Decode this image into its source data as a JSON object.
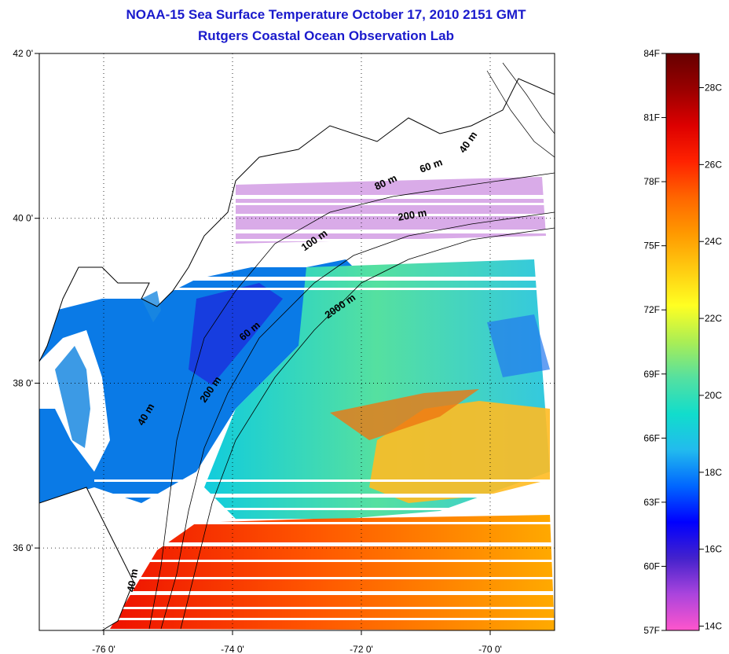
{
  "title_line1": "NOAA-15 Sea Surface Temperature October 17, 2010 2151 GMT",
  "title_line2": "Rutgers Coastal Ocean Observation Lab",
  "map": {
    "lon_range": [
      -77,
      -69
    ],
    "lat_range": [
      35,
      42
    ],
    "lon_ticks": [
      {
        "value": -76,
        "label": "-76 0'"
      },
      {
        "value": -74,
        "label": "-74 0'"
      },
      {
        "value": -72,
        "label": "-72 0'"
      },
      {
        "value": -70,
        "label": "-70 0'"
      }
    ],
    "lat_ticks": [
      {
        "value": 42,
        "label": "42 0'"
      },
      {
        "value": 40,
        "label": "40 0'"
      },
      {
        "value": 38,
        "label": "38 0'"
      },
      {
        "value": 36,
        "label": "36 0'"
      }
    ],
    "isobath_labels": [
      {
        "text": "40 m",
        "lon": -70.3,
        "lat": 40.9,
        "rot": -55
      },
      {
        "text": "60 m",
        "lon": -70.9,
        "lat": 40.6,
        "rot": -20
      },
      {
        "text": "80 m",
        "lon": -71.6,
        "lat": 40.4,
        "rot": -25
      },
      {
        "text": "200 m",
        "lon": -71.2,
        "lat": 40.0,
        "rot": -10
      },
      {
        "text": "100 m",
        "lon": -72.7,
        "lat": 39.7,
        "rot": -35
      },
      {
        "text": "2000 m",
        "lon": -72.3,
        "lat": 38.9,
        "rot": -35
      },
      {
        "text": "60 m",
        "lon": -73.7,
        "lat": 38.6,
        "rot": -40
      },
      {
        "text": "200 m",
        "lon": -74.3,
        "lat": 37.9,
        "rot": -55
      },
      {
        "text": "40 m",
        "lon": -75.3,
        "lat": 37.6,
        "rot": -60
      },
      {
        "text": "40 m",
        "lon": -75.5,
        "lat": 35.6,
        "rot": -80
      }
    ]
  },
  "colorbar": {
    "colors": [
      "#ff55cc",
      "#aa44dd",
      "#4422cc",
      "#0000ff",
      "#0066ff",
      "#22bbee",
      "#11ddcc",
      "#55e0a0",
      "#aaee55",
      "#ffff22",
      "#ffcc11",
      "#ff9900",
      "#ff6600",
      "#ff2200",
      "#dd0000",
      "#990000",
      "#660000"
    ],
    "f_labels": [
      {
        "value": 84,
        "label": "84F"
      },
      {
        "value": 81,
        "label": "81F"
      },
      {
        "value": 78,
        "label": "78F"
      },
      {
        "value": 75,
        "label": "75F"
      },
      {
        "value": 72,
        "label": "72F"
      },
      {
        "value": 69,
        "label": "69F"
      },
      {
        "value": 66,
        "label": "66F"
      },
      {
        "value": 63,
        "label": "63F"
      },
      {
        "value": 60,
        "label": "60F"
      },
      {
        "value": 57,
        "label": "57F"
      }
    ],
    "c_labels": [
      {
        "value": 28,
        "label": "28C"
      },
      {
        "value": 26,
        "label": "26C"
      },
      {
        "value": 24,
        "label": "24C"
      },
      {
        "value": 22,
        "label": "22C"
      },
      {
        "value": 20,
        "label": "20C"
      },
      {
        "value": 18,
        "label": "18C"
      },
      {
        "value": 16,
        "label": "16C"
      },
      {
        "value": 14,
        "label": "14C"
      }
    ]
  }
}
